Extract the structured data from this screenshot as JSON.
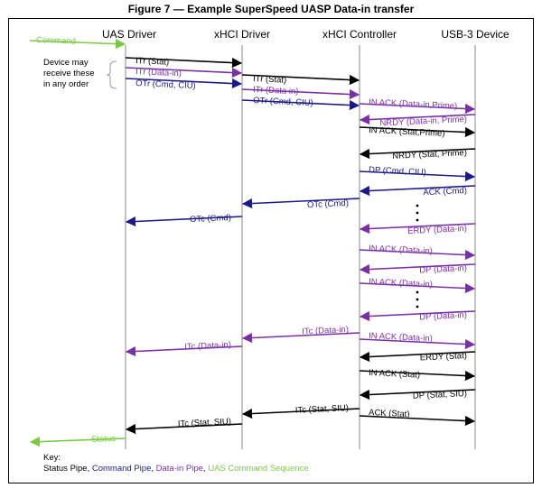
{
  "title": "Figure 7 — Example SuperSpeed UASP Data-in transfer",
  "colors": {
    "status": "#000000",
    "command": "#1a1a8c",
    "datain": "#7a2fa8",
    "uas": "#7ac943"
  },
  "lanes": [
    {
      "id": "uas",
      "label": "UAS Driver"
    },
    {
      "id": "xd",
      "label": "xHCI Driver"
    },
    {
      "id": "xc",
      "label": "xHCI Controller"
    },
    {
      "id": "dev",
      "label": "USB-3 Device"
    }
  ],
  "note": [
    "Device may",
    "receive these",
    "in any order"
  ],
  "messages": [
    {
      "label": "Command",
      "from": "left",
      "to": "uas",
      "pipe": "uas"
    },
    {
      "label": "ITr (Stat)",
      "from": "uas",
      "to": "xd",
      "pipe": "status"
    },
    {
      "label": "ITr (Data-in)",
      "from": "uas",
      "to": "xd",
      "pipe": "datain"
    },
    {
      "label": "OTr (Cmd, CIU)",
      "from": "uas",
      "to": "xd",
      "pipe": "command"
    },
    {
      "label": "ITr (Stat)",
      "from": "xd",
      "to": "xc",
      "pipe": "status"
    },
    {
      "label": "ITr (Data in)",
      "from": "xd",
      "to": "xc",
      "pipe": "datain"
    },
    {
      "label": "OTr (Cmd, CIU)",
      "from": "xd",
      "to": "xc",
      "pipe": "command"
    },
    {
      "label": "IN ACK (Data-in,Prime)",
      "from": "xc",
      "to": "dev",
      "pipe": "datain"
    },
    {
      "label": "NRDY (Data-in, Prime)",
      "from": "dev",
      "to": "xc",
      "pipe": "datain"
    },
    {
      "label": "IN ACK (Stat,Prime)",
      "from": "xc",
      "to": "dev",
      "pipe": "status"
    },
    {
      "label": "NRDY (Stat, Prime)",
      "from": "dev",
      "to": "xc",
      "pipe": "status"
    },
    {
      "label": "DP (Cmd, CIU)",
      "from": "xc",
      "to": "dev",
      "pipe": "command"
    },
    {
      "label": "ACK (Cmd)",
      "from": "dev",
      "to": "xc",
      "pipe": "command"
    },
    {
      "label": "OTc (Cmd)",
      "from": "xc",
      "to": "xd",
      "pipe": "command"
    },
    {
      "label": "OTc (Cmd)",
      "from": "xd",
      "to": "uas",
      "pipe": "command"
    },
    {
      "label": "ERDY (Data-in)",
      "from": "dev",
      "to": "xc",
      "pipe": "datain"
    },
    {
      "label": "IN ACK (Data-in)",
      "from": "xc",
      "to": "dev",
      "pipe": "datain"
    },
    {
      "label": "DP (Data-in)",
      "from": "dev",
      "to": "xc",
      "pipe": "datain"
    },
    {
      "label": "IN ACK (Data-in)",
      "from": "xc",
      "to": "dev",
      "pipe": "datain"
    },
    {
      "label": "DP (Data-in)",
      "from": "dev",
      "to": "xc",
      "pipe": "datain"
    },
    {
      "label": "ITc (Data-in)",
      "from": "xc",
      "to": "xd",
      "pipe": "datain"
    },
    {
      "label": "IN ACK (Data-in)",
      "from": "xc",
      "to": "dev",
      "pipe": "datain"
    },
    {
      "label": "ITc (Data-in)",
      "from": "xd",
      "to": "uas",
      "pipe": "datain"
    },
    {
      "label": "ERDY (Stat)",
      "from": "dev",
      "to": "xc",
      "pipe": "status"
    },
    {
      "label": "IN ACK (Stat)",
      "from": "xc",
      "to": "dev",
      "pipe": "status"
    },
    {
      "label": "DP (Stat, SIU)",
      "from": "dev",
      "to": "xc",
      "pipe": "status"
    },
    {
      "label": "ITc (Stat, SIU)",
      "from": "xc",
      "to": "xd",
      "pipe": "status"
    },
    {
      "label": "ACK (Stat)",
      "from": "xc",
      "to": "dev",
      "pipe": "status"
    },
    {
      "label": "ITc (Stat, SIU)",
      "from": "xd",
      "to": "uas",
      "pipe": "status"
    },
    {
      "label": "Status",
      "from": "uas",
      "to": "left",
      "pipe": "uas"
    }
  ],
  "key": {
    "title": "Key:",
    "items": [
      {
        "label": "Status Pipe",
        "pipe": "status"
      },
      {
        "label": "Command Pipe",
        "pipe": "command"
      },
      {
        "label": "Data-in Pipe",
        "pipe": "datain"
      },
      {
        "label": "UAS Command Sequence",
        "pipe": "uas"
      }
    ]
  }
}
